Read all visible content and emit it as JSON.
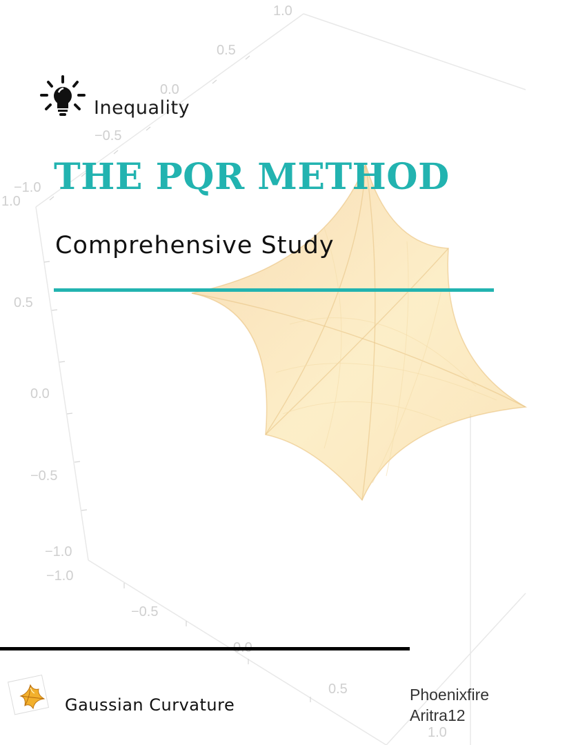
{
  "header": {
    "category": "Inequality",
    "icon": "lightbulb-icon"
  },
  "title": "THE PQR METHOD",
  "subtitle": "Comprehensive Study",
  "colors": {
    "accent": "#22b3b0",
    "surface": "#f8d58a",
    "axis": "#cfcfcf"
  },
  "background_plot": {
    "tick_labels": {
      "top": [
        "1.0",
        "0.5",
        "0.0",
        "−0.5",
        "−1.0"
      ],
      "left_corner": "1.0",
      "vertical": [
        "0.5",
        "0.0",
        "−0.5",
        "−1.0"
      ],
      "bottom": [
        "−1.0",
        "−0.5",
        "0.0",
        "0.5",
        "1.0"
      ]
    }
  },
  "footer": {
    "logo_icon": "gaussian-curvature-logo-icon",
    "label": "Gaussian Curvature",
    "authors": [
      "Phoenixfire",
      "Aritra12"
    ]
  }
}
